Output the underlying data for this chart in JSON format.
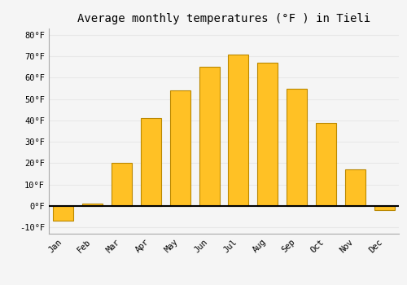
{
  "title": "Average monthly temperatures (°F ) in Tieli",
  "months": [
    "Jan",
    "Feb",
    "Mar",
    "Apr",
    "May",
    "Jun",
    "Jul",
    "Aug",
    "Sep",
    "Oct",
    "Nov",
    "Dec"
  ],
  "values": [
    -7,
    1,
    20,
    41,
    54,
    65,
    71,
    67,
    55,
    39,
    17,
    -2
  ],
  "bar_color": "#FFC125",
  "bar_edge_color": "#BB8800",
  "background_color": "#F5F5F5",
  "grid_color": "#E8E8E8",
  "ylim": [
    -13,
    83
  ],
  "yticks": [
    -10,
    0,
    10,
    20,
    30,
    40,
    50,
    60,
    70,
    80
  ],
  "ytick_labels": [
    "-10°F",
    "0°F",
    "10°F",
    "20°F",
    "30°F",
    "40°F",
    "50°F",
    "60°F",
    "70°F",
    "80°F"
  ],
  "title_fontsize": 10,
  "tick_fontsize": 7.5,
  "font_family": "monospace",
  "bar_width": 0.7
}
